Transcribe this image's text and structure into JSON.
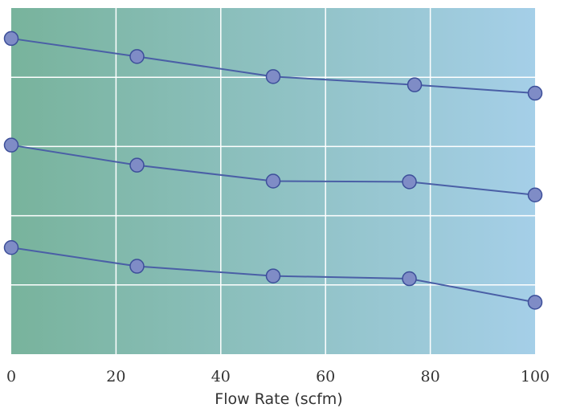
{
  "chart_data": {
    "type": "line",
    "xlabel": "Flow Rate (scfm)",
    "xlim": [
      0,
      100
    ],
    "ylim": [
      0,
      5
    ],
    "x_ticks": [
      "0",
      "20",
      "40",
      "60",
      "80",
      "100"
    ],
    "grid": true,
    "series": [
      {
        "x": [
          0,
          24,
          50,
          77,
          100
        ],
        "values": [
          4.56,
          4.3,
          4.01,
          3.89,
          3.77
        ]
      },
      {
        "x": [
          0,
          24,
          50,
          76,
          100
        ],
        "values": [
          3.02,
          2.73,
          2.5,
          2.49,
          2.3
        ]
      },
      {
        "x": [
          0,
          24,
          50,
          76,
          100
        ],
        "values": [
          1.54,
          1.27,
          1.13,
          1.09,
          0.75
        ]
      }
    ],
    "colors": {
      "line": "#4a5fa6",
      "marker_fill": "#7f8cc6",
      "marker_stroke": "#3d4f9a",
      "bg_left": "#78b39c",
      "bg_right": "#a5cfe8",
      "grid": "#ffffff"
    }
  }
}
